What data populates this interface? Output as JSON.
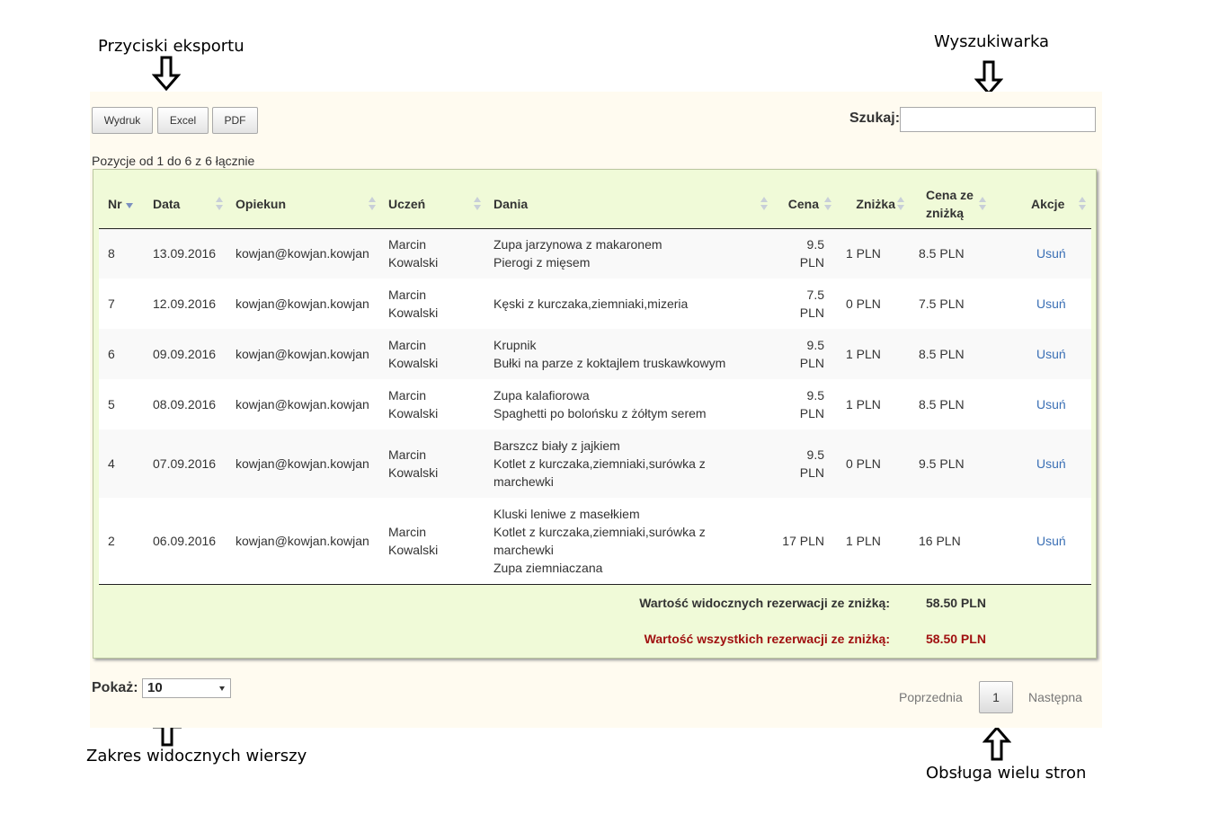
{
  "annotations": {
    "export": "Przyciski eksportu",
    "search": "Wyszukiwarka",
    "rows": "Zakres widocznych wierszy",
    "paging": "Obsługa wielu stron"
  },
  "toolbar": {
    "print_label": "Wydruk",
    "excel_label": "Excel",
    "pdf_label": "PDF"
  },
  "search": {
    "label": "Szukaj:",
    "value": ""
  },
  "info": "Pozycje od 1 do 6 z 6 łącznie",
  "table": {
    "headers": {
      "nr": "Nr",
      "data": "Data",
      "opiekun": "Opiekun",
      "uczen": "Uczeń",
      "dania": "Dania",
      "cena": "Cena",
      "znizka": "Zniżka",
      "cena_znizka": "Cena ze zniżką",
      "akcje": "Akcje"
    },
    "rows": [
      {
        "nr": "8",
        "data": "13.09.2016",
        "opiekun": "kowjan@kowjan.kowjan",
        "uczen": [
          "Marcin",
          "Kowalski"
        ],
        "dania": [
          "Zupa jarzynowa z makaronem",
          "Pierogi z mięsem"
        ],
        "cena": "9.5 PLN",
        "znizka": "1 PLN",
        "cena_znizka": "8.5 PLN",
        "akcja": "Usuń"
      },
      {
        "nr": "7",
        "data": "12.09.2016",
        "opiekun": "kowjan@kowjan.kowjan",
        "uczen": [
          "Marcin",
          "Kowalski"
        ],
        "dania": [
          "Kęski z kurczaka,ziemniaki,mizeria"
        ],
        "cena": "7.5 PLN",
        "znizka": "0 PLN",
        "cena_znizka": "7.5 PLN",
        "akcja": "Usuń"
      },
      {
        "nr": "6",
        "data": "09.09.2016",
        "opiekun": "kowjan@kowjan.kowjan",
        "uczen": [
          "Marcin",
          "Kowalski"
        ],
        "dania": [
          "Krupnik",
          "Bułki na parze z koktajlem truskawkowym"
        ],
        "cena": "9.5 PLN",
        "znizka": "1 PLN",
        "cena_znizka": "8.5 PLN",
        "akcja": "Usuń"
      },
      {
        "nr": "5",
        "data": "08.09.2016",
        "opiekun": "kowjan@kowjan.kowjan",
        "uczen": [
          "Marcin",
          "Kowalski"
        ],
        "dania": [
          "Zupa kalafiorowa",
          "Spaghetti po bolońsku z żółtym serem"
        ],
        "cena": "9.5 PLN",
        "znizka": "1 PLN",
        "cena_znizka": "8.5 PLN",
        "akcja": "Usuń"
      },
      {
        "nr": "4",
        "data": "07.09.2016",
        "opiekun": "kowjan@kowjan.kowjan",
        "uczen": [
          "Marcin",
          "Kowalski"
        ],
        "dania": [
          "Barszcz biały z jajkiem",
          "Kotlet z kurczaka,ziemniaki,surówka z",
          "marchewki"
        ],
        "cena": "9.5 PLN",
        "znizka": "0 PLN",
        "cena_znizka": "9.5 PLN",
        "akcja": "Usuń"
      },
      {
        "nr": "2",
        "data": "06.09.2016",
        "opiekun": "kowjan@kowjan.kowjan",
        "uczen": [
          "Marcin",
          "Kowalski"
        ],
        "dania": [
          "Kluski leniwe z masełkiem",
          "Kotlet z kurczaka,ziemniaki,surówka z",
          "marchewki",
          "Zupa ziemniaczana"
        ],
        "cena": "17 PLN",
        "znizka": "1 PLN",
        "cena_znizka": "16 PLN",
        "akcja": "Usuń"
      }
    ],
    "footer": {
      "visible_label": "Wartość widocznych rezerwacji ze zniżką:",
      "visible_value": "58.50 PLN",
      "all_label": "Wartość wszystkich rezerwacji ze zniżką:",
      "all_value": "58.50 PLN"
    }
  },
  "length": {
    "label": "Pokaż:",
    "value": "10"
  },
  "pager": {
    "prev": "Poprzednia",
    "current": "1",
    "next": "Następna"
  },
  "colors": {
    "panel_bg": "#fffbf0",
    "table_bg": "#f0fad8",
    "link": "#3a6fb5",
    "footer_red": "#a01010"
  }
}
